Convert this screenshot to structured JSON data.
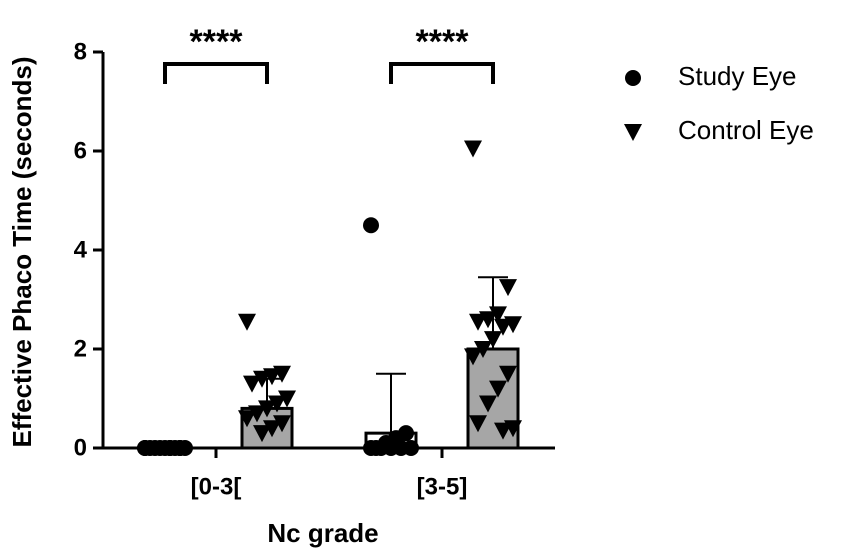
{
  "chart_data": {
    "type": "bar",
    "ylabel": "Effective Phaco Time (seconds)",
    "xlabel": "Nc grade",
    "categories": [
      "[0-3[",
      "[3-5]"
    ],
    "series": [
      {
        "name": "Study Eye",
        "color": "#000000",
        "bar_fill": "#ffffff",
        "marker": "circle",
        "values": [
          0,
          0.3
        ],
        "errors": [
          0,
          1.2
        ],
        "points": [
          [
            0,
            0,
            0,
            0,
            0,
            0,
            0,
            0,
            0,
            0,
            0,
            0
          ],
          [
            4.5,
            0.3,
            0.2,
            0.1,
            0,
            0,
            0,
            0,
            0,
            0
          ]
        ]
      },
      {
        "name": "Control Eye",
        "color": "#000000",
        "bar_fill": "#a6a6a6",
        "marker": "triangle-down",
        "values": [
          0.8,
          2.0
        ],
        "errors": [
          0.6,
          1.45
        ],
        "points": [
          [
            2.55,
            1.5,
            1.45,
            1.4,
            1.3,
            1.0,
            0.9,
            0.8,
            0.7,
            0.6,
            0.5,
            0.4,
            0.3
          ],
          [
            6.05,
            3.25,
            2.7,
            2.6,
            2.55,
            2.5,
            2.45,
            2.2,
            2.0,
            1.85,
            1.5,
            1.2,
            0.9,
            0.5,
            0.4,
            0.35
          ]
        ]
      }
    ],
    "annotations": [
      {
        "text": "****"
      },
      {
        "text": "****"
      }
    ],
    "ylim": [
      0,
      8
    ],
    "yticks": [
      0,
      2,
      4,
      6,
      8
    ],
    "grid": false
  }
}
